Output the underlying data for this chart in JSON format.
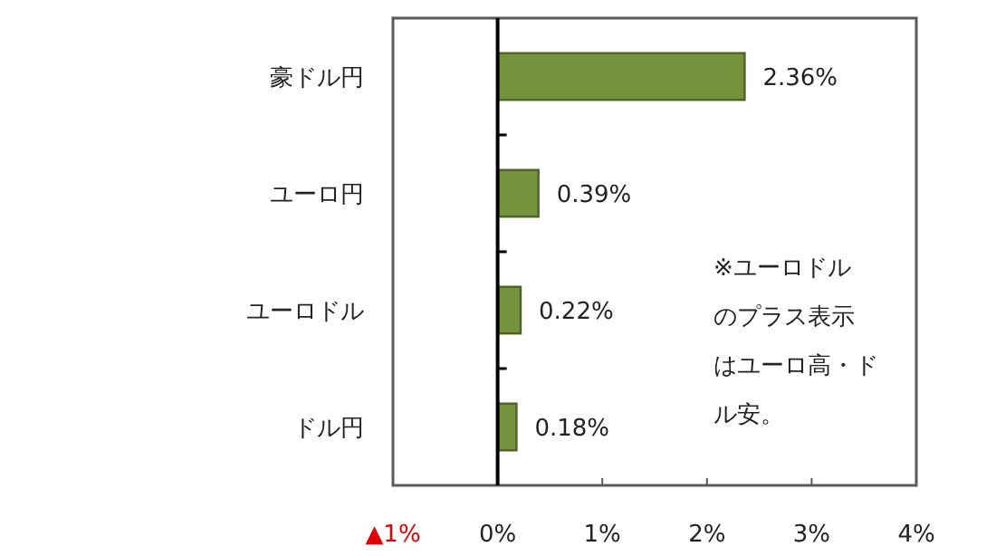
{
  "chart_data": {
    "type": "bar",
    "orientation": "horizontal",
    "categories": [
      "豪ドル円",
      "ユーロ円",
      "ユーロドル",
      "ドル円"
    ],
    "values": [
      2.36,
      0.39,
      0.22,
      0.18
    ],
    "value_labels": [
      "2.36%",
      "0.39%",
      "0.22%",
      "0.18%"
    ],
    "color": "#76923c",
    "xlim": [
      -1,
      4
    ],
    "xticks": [
      {
        "value": -1,
        "label": "▲1%"
      },
      {
        "value": 0,
        "label": "0%"
      },
      {
        "value": 1,
        "label": "1%"
      },
      {
        "value": 2,
        "label": "2%"
      },
      {
        "value": 3,
        "label": "3%"
      },
      {
        "value": 4,
        "label": "4%"
      }
    ],
    "annotations": [
      "※ユーロドルのプラス表示はユーロ高・ドル安。"
    ]
  }
}
